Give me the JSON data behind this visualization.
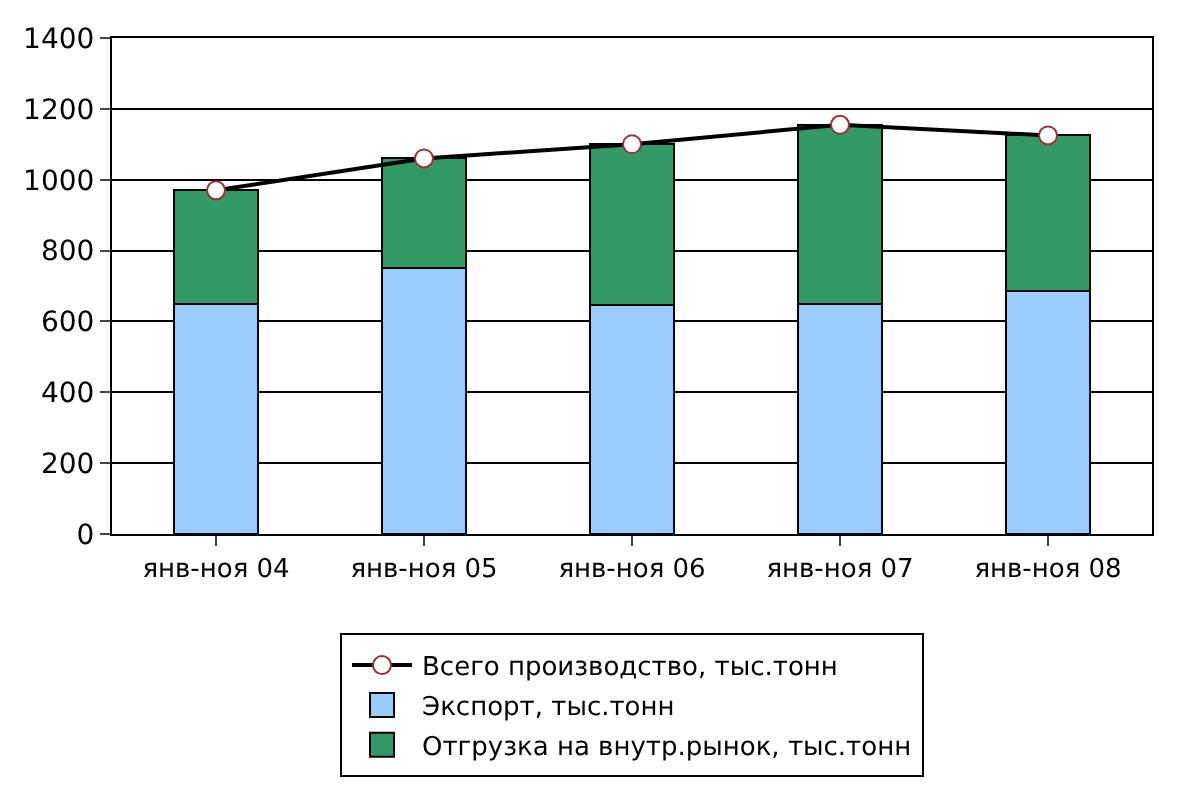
{
  "chart_data": {
    "type": "bar",
    "stacked": true,
    "categories": [
      "янв-ноя 04",
      "янв-ноя 05",
      "янв-ноя 06",
      "янв-ноя 07",
      "янв-ноя 08"
    ],
    "series": [
      {
        "name": "Экспорт, тыс.тонн",
        "color": "#99ccff",
        "values": [
          650,
          750,
          645,
          650,
          685
        ]
      },
      {
        "name": "Отгрузка на внутр.рынок, тыс.тонн",
        "color": "#339966",
        "values": [
          320,
          310,
          455,
          505,
          440
        ]
      },
      {
        "name": "Всего производство, тыс.тонн",
        "type": "line",
        "color": "#000000",
        "marker": "circle",
        "values": [
          970,
          1060,
          1100,
          1155,
          1125
        ]
      }
    ],
    "ylim": [
      0,
      1400
    ],
    "yticks": [
      0,
      200,
      400,
      600,
      800,
      1000,
      1200,
      1400
    ],
    "grid": "y",
    "legend": "bottom"
  }
}
